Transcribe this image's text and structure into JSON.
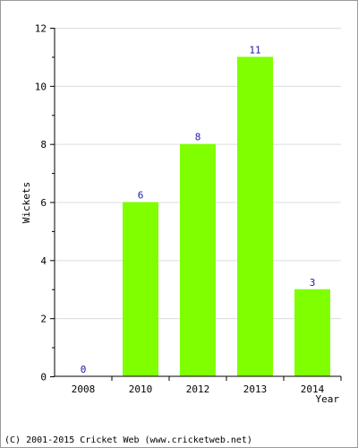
{
  "chart_data": {
    "type": "bar",
    "categories": [
      "2008",
      "2010",
      "2012",
      "2013",
      "2014"
    ],
    "values": [
      0,
      6,
      8,
      11,
      3
    ],
    "data_labels": [
      "0",
      "6",
      "8",
      "11",
      "3"
    ],
    "title": "",
    "xlabel": "Year",
    "ylabel": "Wickets",
    "ylim": [
      0,
      12
    ],
    "yticks": [
      0,
      2,
      4,
      6,
      8,
      10,
      12
    ],
    "ytick_labels": [
      "0",
      "2",
      "4",
      "6",
      "8",
      "10",
      "12"
    ],
    "grid": true,
    "bar_color": "#7fff00",
    "label_color": "#1a1aa6"
  },
  "footer": {
    "copyright": "(C) 2001-2015 Cricket Web (www.cricketweb.net)"
  }
}
